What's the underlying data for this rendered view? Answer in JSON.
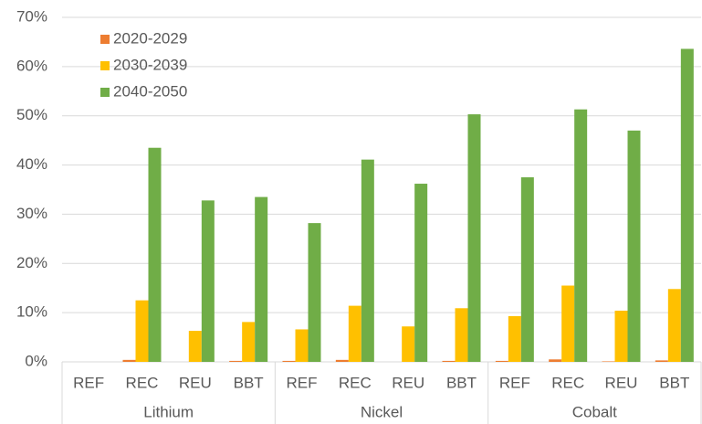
{
  "chart_data": {
    "type": "bar",
    "categories": [
      "REF",
      "REC",
      "REU",
      "BBT",
      "REF",
      "REC",
      "REU",
      "BBT",
      "REF",
      "REC",
      "REU",
      "BBT"
    ],
    "groups": [
      "Lithium",
      "Nickel",
      "Cobalt"
    ],
    "series": [
      {
        "name": "2020-2029",
        "color": "#ED7D31",
        "values": [
          0,
          0.4,
          0,
          0.2,
          0.2,
          0.4,
          0,
          0.2,
          0.2,
          0.5,
          0.1,
          0.3
        ]
      },
      {
        "name": "2030-2039",
        "color": "#FFC000",
        "values": [
          0,
          12.5,
          6.3,
          8.1,
          6.6,
          11.4,
          7.2,
          10.9,
          9.3,
          15.5,
          10.4,
          14.8
        ]
      },
      {
        "name": "2040-2050",
        "color": "#70AD47",
        "values": [
          0,
          43.5,
          32.8,
          33.5,
          28.2,
          41.1,
          36.2,
          50.3,
          37.5,
          51.3,
          47.0,
          63.6
        ]
      }
    ],
    "ylim": [
      0,
      70
    ],
    "yticks": [
      {
        "value": 0,
        "label": "0%"
      },
      {
        "value": 10,
        "label": "10%"
      },
      {
        "value": 20,
        "label": "20%"
      },
      {
        "value": 30,
        "label": "30%"
      },
      {
        "value": 40,
        "label": "40%"
      },
      {
        "value": 50,
        "label": "50%"
      },
      {
        "value": 60,
        "label": "60%"
      },
      {
        "value": 70,
        "label": "70%"
      }
    ],
    "grid": true,
    "legend": "upper-left"
  }
}
